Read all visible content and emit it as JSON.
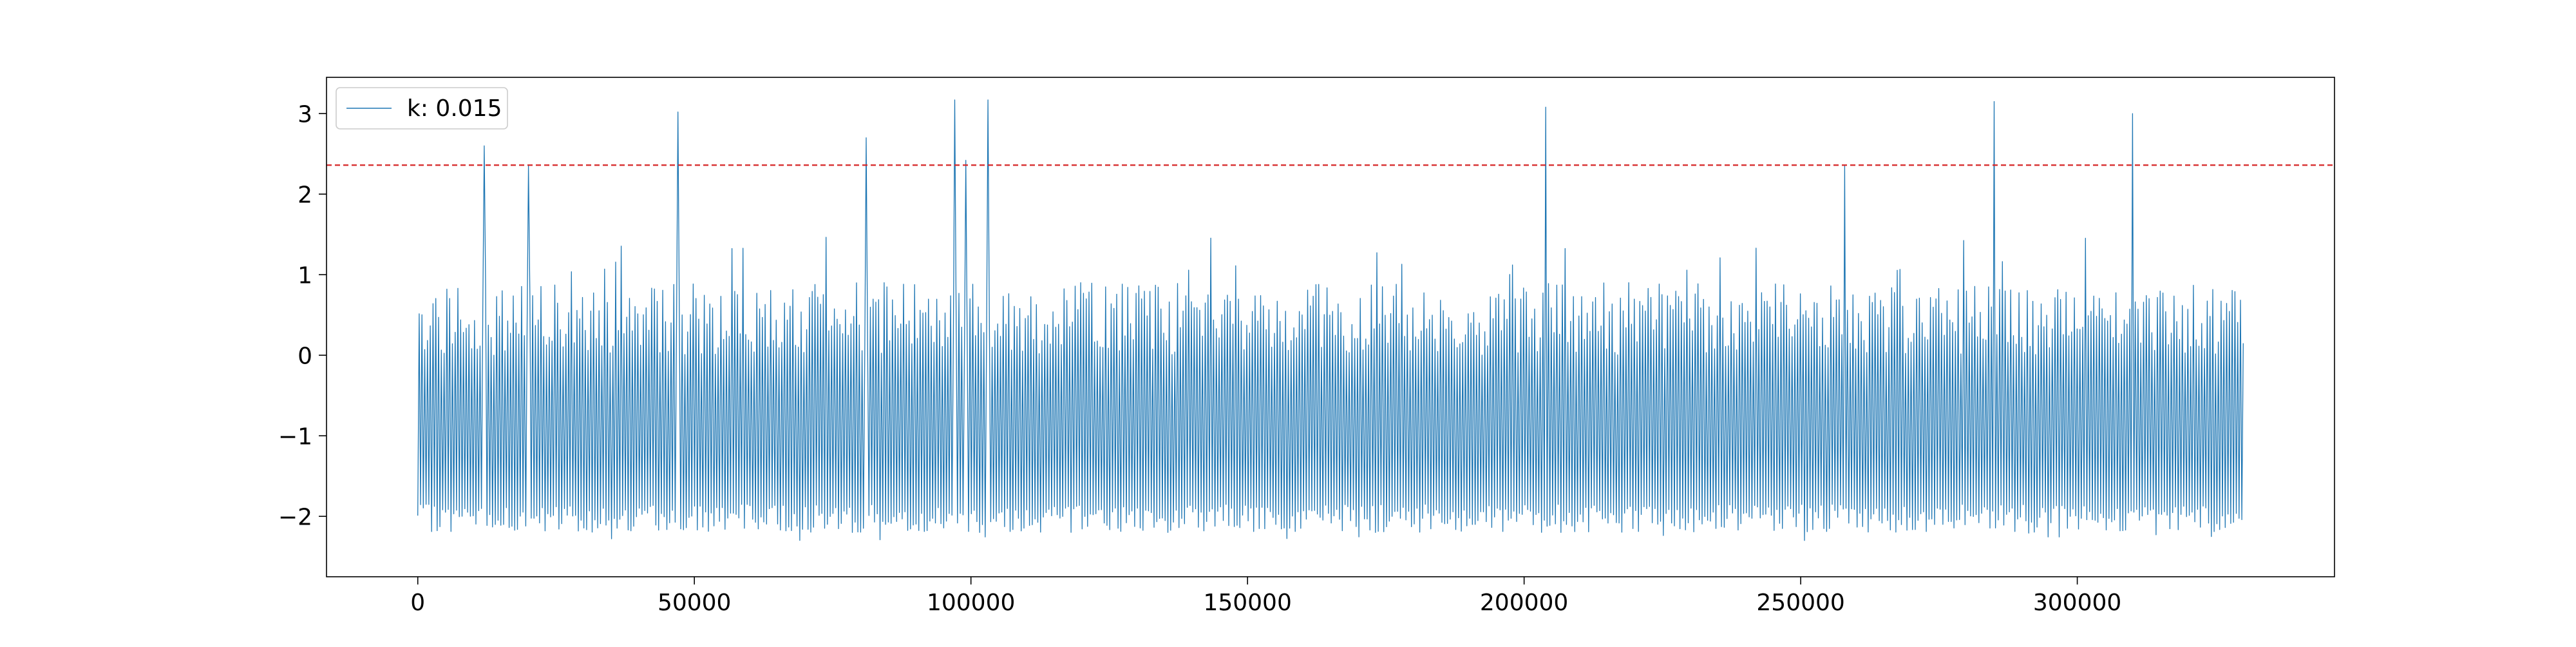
{
  "chart_data": {
    "type": "line",
    "title": "",
    "xlabel": "",
    "ylabel": "",
    "xlim": [
      -16500,
      346500
    ],
    "ylim": [
      -2.75,
      3.45
    ],
    "x_ticks": [
      0,
      50000,
      100000,
      150000,
      200000,
      250000,
      300000
    ],
    "y_ticks": [
      -2,
      -1,
      0,
      1,
      2,
      3
    ],
    "x_tick_labels": [
      "0",
      "50000",
      "100000",
      "150000",
      "200000",
      "250000",
      "300000"
    ],
    "y_tick_labels": [
      "−2",
      "−1",
      "0",
      "1",
      "2",
      "3"
    ],
    "grid": false,
    "legend": {
      "position": "top-left",
      "entries": [
        "k: 0.015"
      ]
    },
    "series": [
      {
        "name": "k: 0.015",
        "color": "#1f77b4",
        "x_range": [
          0,
          330000
        ],
        "sample_count": 1320,
        "typical_min": -2.2,
        "typical_max": 0.7,
        "peaks": [
          {
            "x": 12000,
            "y": 2.6
          },
          {
            "x": 20000,
            "y": 2.35
          },
          {
            "x": 47000,
            "y": 3.02
          },
          {
            "x": 81000,
            "y": 2.7
          },
          {
            "x": 97000,
            "y": 3.17
          },
          {
            "x": 99000,
            "y": 2.42
          },
          {
            "x": 103000,
            "y": 3.17
          },
          {
            "x": 204000,
            "y": 3.08
          },
          {
            "x": 258000,
            "y": 2.35
          },
          {
            "x": 285000,
            "y": 3.15
          },
          {
            "x": 310000,
            "y": 3.0
          }
        ]
      }
    ],
    "threshold": {
      "y": 2.36,
      "color": "#d62728",
      "style": "dashed"
    }
  }
}
